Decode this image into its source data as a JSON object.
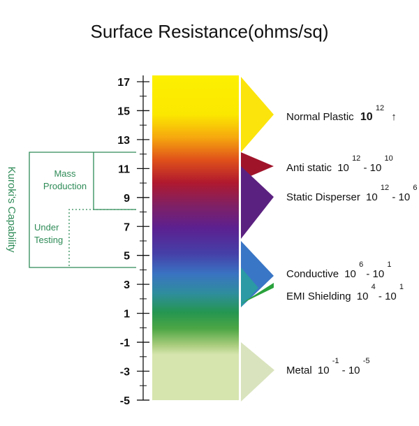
{
  "title": "Surface Resistance(ohms/sq)",
  "axis": {
    "ticks": [
      "17",
      "15",
      "13",
      "11",
      "9",
      "7",
      "5",
      "3",
      "1",
      "-1",
      "-3",
      "-5"
    ]
  },
  "categories": [
    {
      "id": "normal-plastic",
      "name": "Normal Plastic",
      "base1": "10",
      "exp1": "12",
      "sep": "",
      "base2": "",
      "exp2": "",
      "suffix": "↑",
      "color": "#f7e619"
    },
    {
      "id": "anti-static",
      "name": "Anti static",
      "base1": "10",
      "exp1": "12",
      "sep": "-",
      "base2": "10",
      "exp2": "10",
      "suffix": "",
      "color": "#a0142a"
    },
    {
      "id": "static-disperser",
      "name": "Static Disperser",
      "base1": "10",
      "exp1": "12",
      "sep": "-",
      "base2": "10",
      "exp2": "6",
      "suffix": "",
      "color": "#5b2180"
    },
    {
      "id": "conductive",
      "name": "Conductive",
      "base1": "10",
      "exp1": "6",
      "sep": "-",
      "base2": "10",
      "exp2": "1",
      "suffix": "",
      "color": "#3b78c4"
    },
    {
      "id": "emi-shielding",
      "name": "EMI Shielding",
      "base1": "10",
      "exp1": "4",
      "sep": "-",
      "base2": "10",
      "exp2": "1",
      "suffix": "",
      "color": "#2aa23c"
    },
    {
      "id": "metal",
      "name": "Metal",
      "base1": "10",
      "exp1": "-1",
      "sep": "-",
      "base2": "10",
      "exp2": "-5",
      "suffix": "",
      "color": "#d9e3b8"
    }
  ],
  "capability": {
    "side_label": "Kuroki's Capability",
    "mass_production": [
      "Mass",
      "Production"
    ],
    "under_testing": [
      "Under",
      "Testing"
    ],
    "color": "#2e8b57"
  }
}
